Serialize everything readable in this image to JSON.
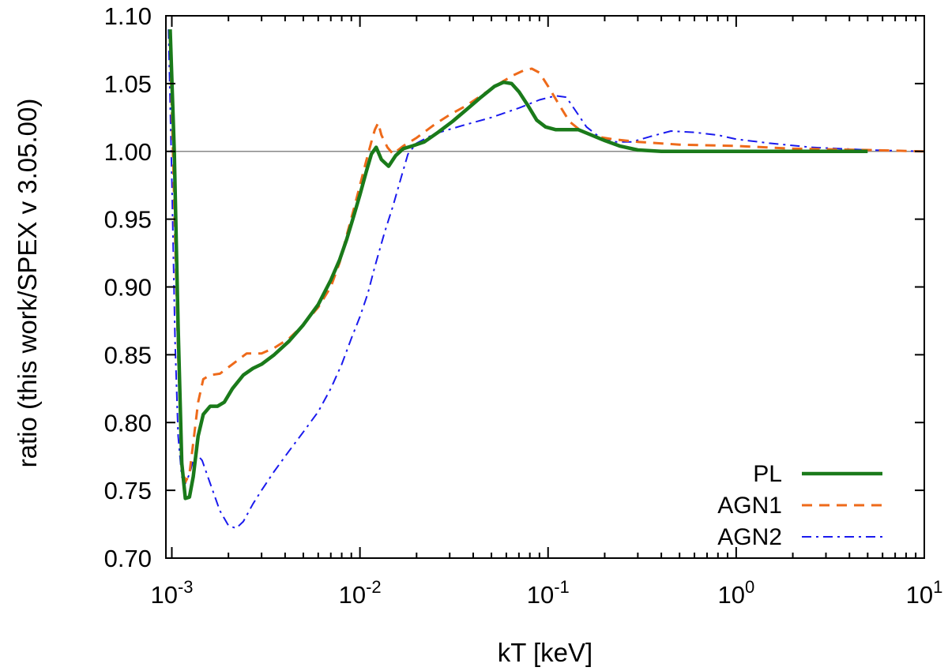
{
  "chart_data": {
    "type": "line",
    "title": "",
    "xlabel": "kT [keV]",
    "ylabel": "ratio (this work/SPEX v 3.05.00)",
    "xscale": "log",
    "xlim": [
      0.00093,
      10
    ],
    "ylim": [
      0.7,
      1.1
    ],
    "x_ticks": [
      {
        "value": 0.001,
        "base": "10",
        "exp": "-3"
      },
      {
        "value": 0.01,
        "base": "10",
        "exp": "-2"
      },
      {
        "value": 0.1,
        "base": "10",
        "exp": "-1"
      },
      {
        "value": 1,
        "base": "10",
        "exp": "0"
      },
      {
        "value": 10,
        "base": "10",
        "exp": "1"
      }
    ],
    "y_ticks": [
      {
        "value": 0.7,
        "label": "0.70"
      },
      {
        "value": 0.75,
        "label": "0.75"
      },
      {
        "value": 0.8,
        "label": "0.80"
      },
      {
        "value": 0.85,
        "label": "0.85"
      },
      {
        "value": 0.9,
        "label": "0.90"
      },
      {
        "value": 0.95,
        "label": "0.95"
      },
      {
        "value": 1.0,
        "label": "1.00"
      },
      {
        "value": 1.05,
        "label": "1.05"
      },
      {
        "value": 1.1,
        "label": "1.10"
      }
    ],
    "reference_line": {
      "y": 1.0,
      "color": "#888888"
    },
    "legend_position": "bottom-right",
    "series": [
      {
        "name": "PL",
        "color": "#1a7a1a",
        "style": "solid",
        "x": [
          0.00098,
          0.00103,
          0.00108,
          0.00113,
          0.00118,
          0.00124,
          0.0013,
          0.00138,
          0.00147,
          0.0016,
          0.00175,
          0.0019,
          0.0021,
          0.0024,
          0.0027,
          0.003,
          0.0035,
          0.0042,
          0.005,
          0.006,
          0.007,
          0.0078,
          0.0085,
          0.0093,
          0.01,
          0.0108,
          0.0115,
          0.0122,
          0.013,
          0.0142,
          0.0155,
          0.017,
          0.019,
          0.022,
          0.026,
          0.031,
          0.037,
          0.044,
          0.052,
          0.058,
          0.064,
          0.07,
          0.078,
          0.087,
          0.097,
          0.11,
          0.125,
          0.145,
          0.17,
          0.2,
          0.24,
          0.3,
          0.4,
          0.6,
          1.0,
          2.0,
          5.0
        ],
        "y": [
          1.09,
          1.0,
          0.87,
          0.77,
          0.744,
          0.745,
          0.76,
          0.79,
          0.806,
          0.812,
          0.812,
          0.815,
          0.825,
          0.835,
          0.84,
          0.843,
          0.85,
          0.86,
          0.872,
          0.887,
          0.905,
          0.92,
          0.935,
          0.953,
          0.968,
          0.985,
          0.998,
          1.003,
          0.994,
          0.989,
          0.997,
          1.002,
          1.004,
          1.007,
          1.014,
          1.022,
          1.031,
          1.04,
          1.048,
          1.051,
          1.05,
          1.044,
          1.034,
          1.023,
          1.018,
          1.016,
          1.016,
          1.016,
          1.012,
          1.008,
          1.004,
          1.001,
          1.0,
          1.0,
          1.0,
          1.0,
          1.0
        ]
      },
      {
        "name": "AGN1",
        "color": "#ee6a1a",
        "style": "dashed",
        "x": [
          0.00098,
          0.00103,
          0.00108,
          0.00113,
          0.00118,
          0.00124,
          0.0013,
          0.00138,
          0.00147,
          0.0016,
          0.0018,
          0.0021,
          0.0025,
          0.003,
          0.0035,
          0.0042,
          0.005,
          0.006,
          0.007,
          0.0078,
          0.0085,
          0.0093,
          0.01,
          0.0108,
          0.0115,
          0.012,
          0.0125,
          0.013,
          0.014,
          0.015,
          0.017,
          0.02,
          0.025,
          0.03,
          0.037,
          0.045,
          0.055,
          0.065,
          0.075,
          0.082,
          0.09,
          0.1,
          0.115,
          0.13,
          0.15,
          0.18,
          0.22,
          0.3,
          0.5,
          1.0,
          2.0,
          5.0,
          10.0
        ],
        "y": [
          1.08,
          0.96,
          0.85,
          0.77,
          0.756,
          0.762,
          0.785,
          0.815,
          0.832,
          0.835,
          0.836,
          0.843,
          0.851,
          0.851,
          0.855,
          0.862,
          0.872,
          0.885,
          0.9,
          0.918,
          0.938,
          0.958,
          0.975,
          0.993,
          1.007,
          1.016,
          1.021,
          1.012,
          1.003,
          0.998,
          1.004,
          1.01,
          1.02,
          1.027,
          1.034,
          1.042,
          1.05,
          1.056,
          1.06,
          1.061,
          1.058,
          1.048,
          1.034,
          1.022,
          1.015,
          1.011,
          1.009,
          1.007,
          1.005,
          1.004,
          1.002,
          1.001,
          1.0
        ]
      },
      {
        "name": "AGN2",
        "color": "#1a1aee",
        "style": "dashdot",
        "x": [
          0.00096,
          0.001,
          0.00104,
          0.00108,
          0.00113,
          0.00118,
          0.00124,
          0.0013,
          0.00137,
          0.00145,
          0.0016,
          0.0018,
          0.002,
          0.0022,
          0.0024,
          0.0027,
          0.003,
          0.0035,
          0.0042,
          0.005,
          0.006,
          0.007,
          0.008,
          0.009,
          0.01,
          0.011,
          0.012,
          0.0135,
          0.015,
          0.0165,
          0.018,
          0.02,
          0.025,
          0.035,
          0.05,
          0.07,
          0.09,
          0.11,
          0.125,
          0.14,
          0.16,
          0.19,
          0.23,
          0.28,
          0.35,
          0.45,
          0.6,
          0.8,
          1.0,
          1.5,
          2.5,
          5.0,
          10.0
        ],
        "y": [
          1.09,
          0.98,
          0.86,
          0.79,
          0.76,
          0.755,
          0.762,
          0.772,
          0.776,
          0.772,
          0.755,
          0.735,
          0.724,
          0.722,
          0.727,
          0.74,
          0.75,
          0.764,
          0.779,
          0.793,
          0.808,
          0.825,
          0.843,
          0.862,
          0.878,
          0.895,
          0.915,
          0.94,
          0.96,
          0.98,
          0.998,
          1.006,
          1.013,
          1.019,
          1.025,
          1.032,
          1.038,
          1.041,
          1.04,
          1.03,
          1.018,
          1.01,
          1.007,
          1.007,
          1.011,
          1.015,
          1.014,
          1.012,
          1.009,
          1.006,
          1.003,
          1.001,
          1.0
        ]
      }
    ]
  }
}
